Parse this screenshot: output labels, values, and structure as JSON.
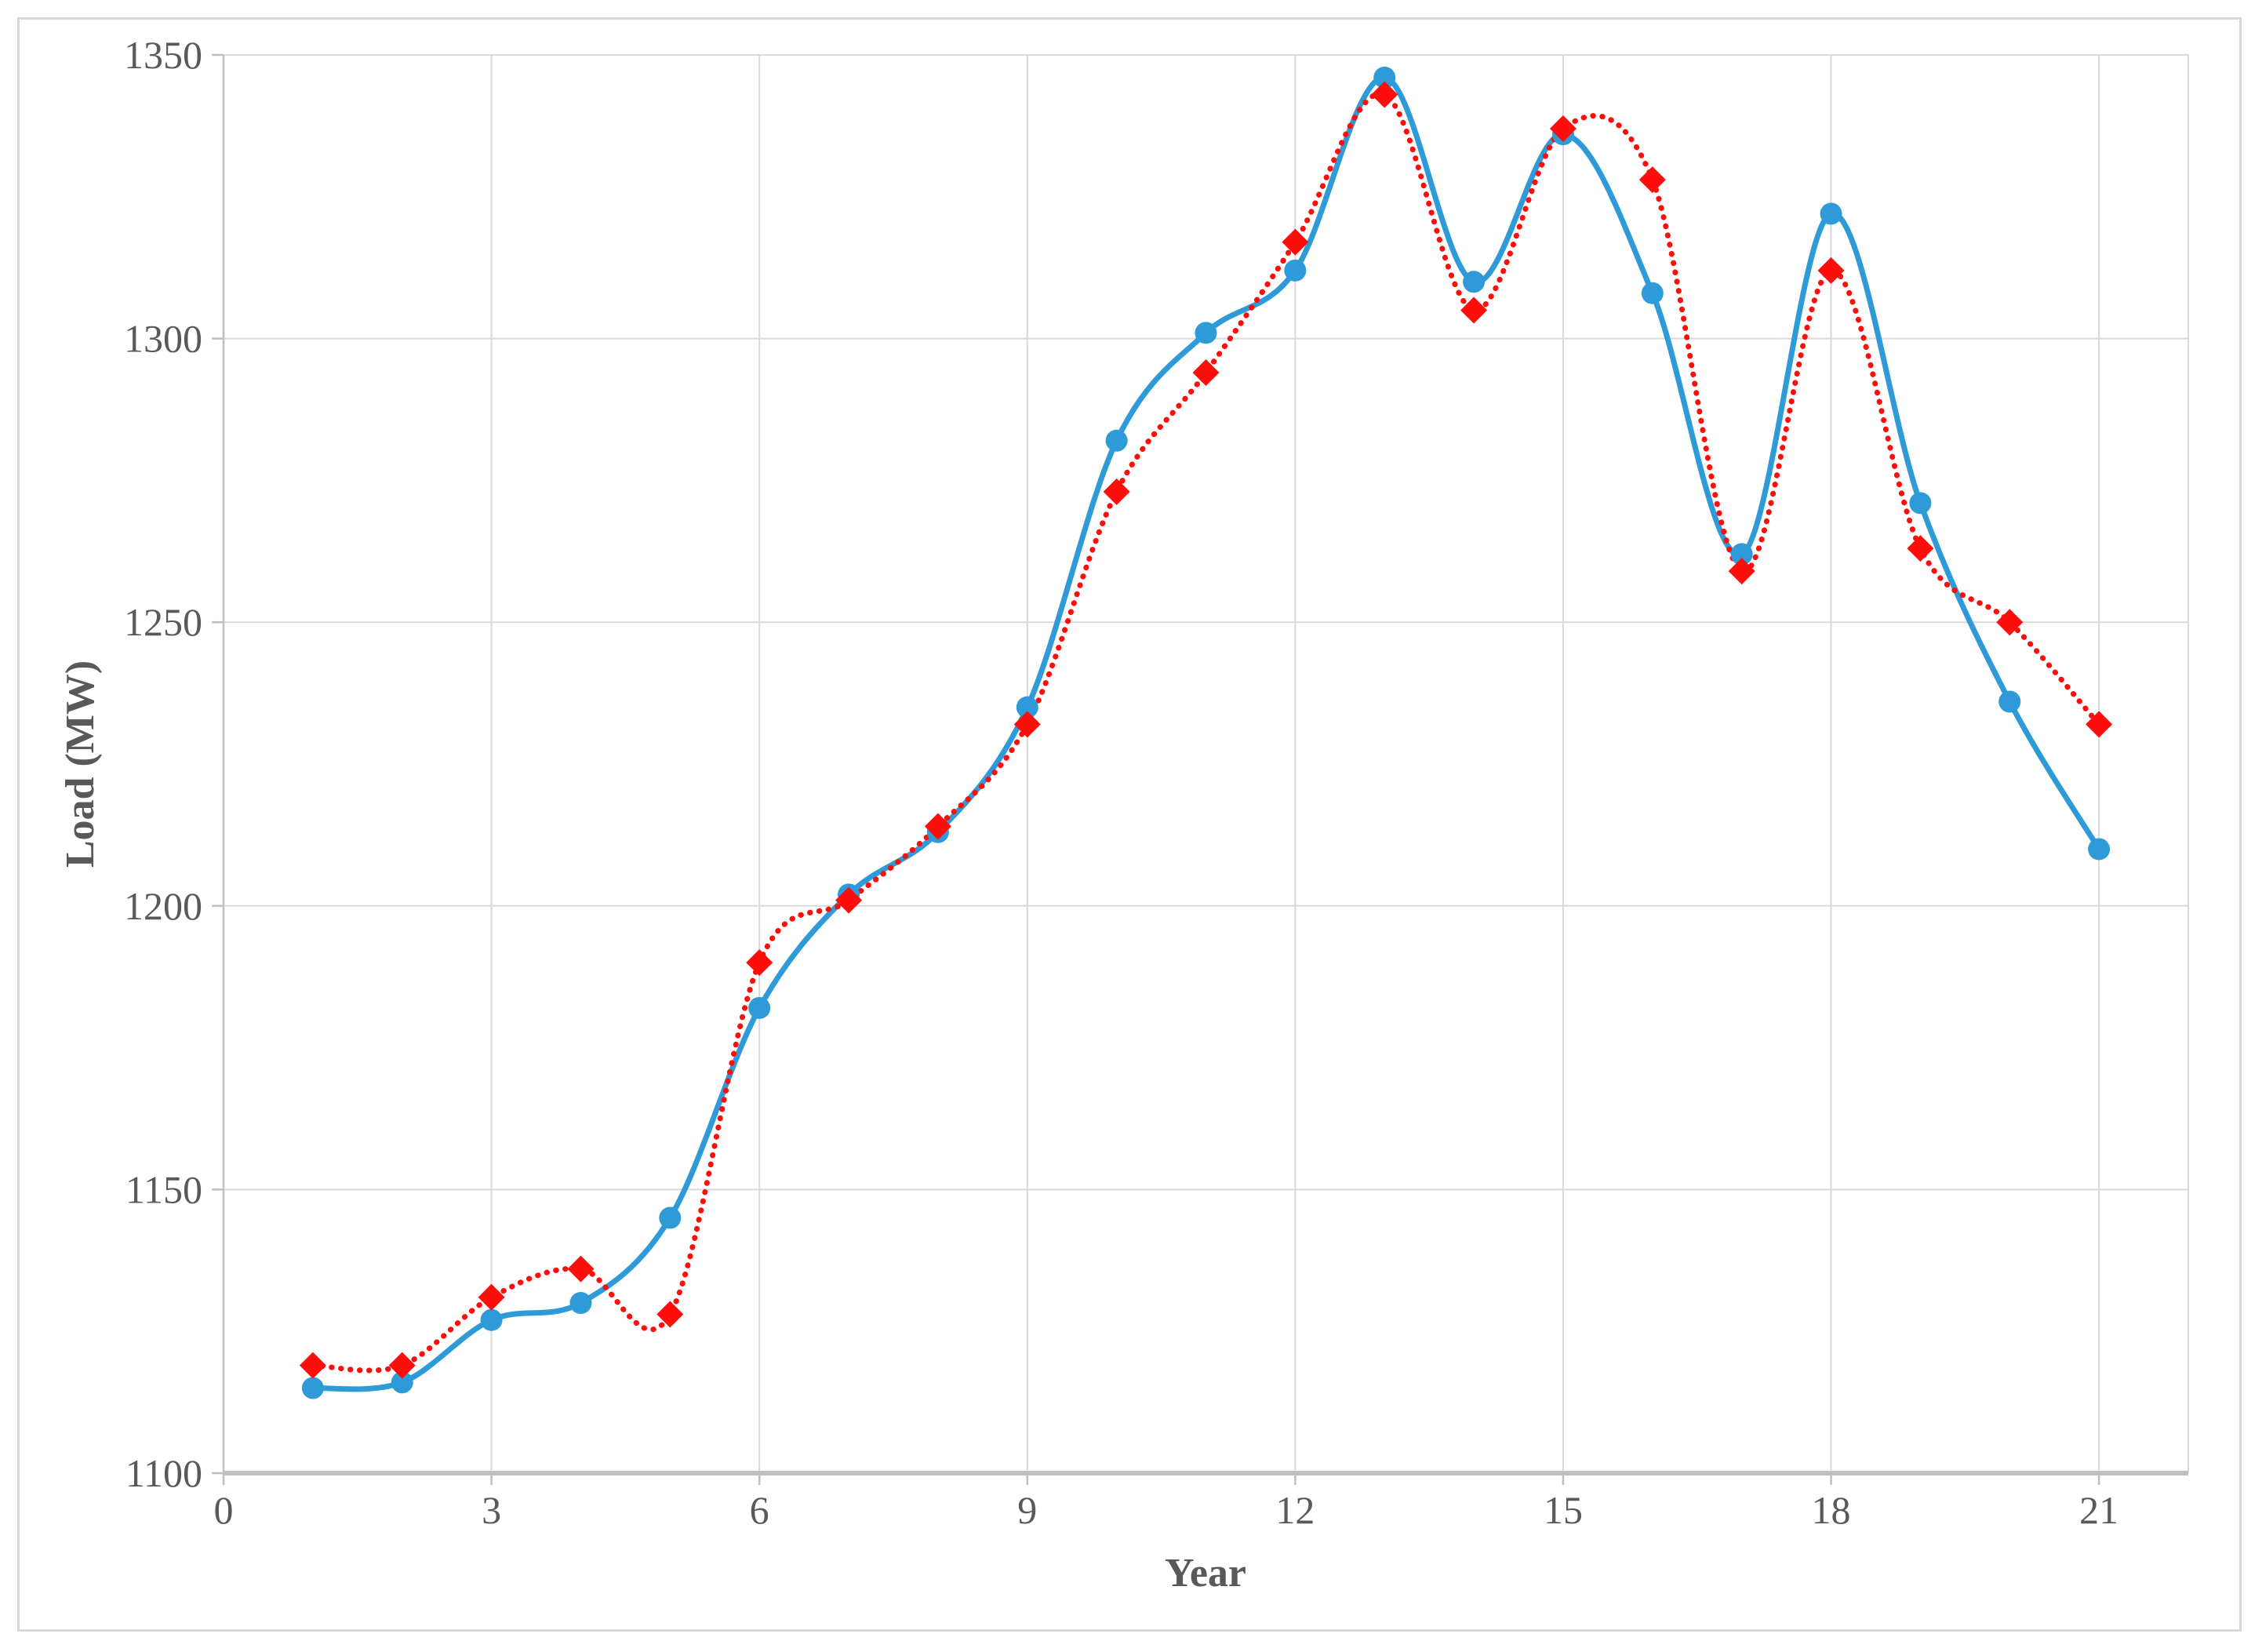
{
  "figure": {
    "background_color": "#FFFFFF",
    "frame_color": "#D8D8D8",
    "grid_color": "#D9D9D9",
    "axis_line_color": "#BFBFBF",
    "tick_label_color": "#595959",
    "axis_title_color": "#595959"
  },
  "chart_data": {
    "type": "line",
    "title": "",
    "xlabel": "Year",
    "ylabel": "Load (MW)",
    "xlim": [
      0,
      22
    ],
    "ylim": [
      1100,
      1350
    ],
    "x_ticks": [
      0,
      3,
      6,
      9,
      12,
      15,
      18,
      21
    ],
    "y_ticks": [
      1100,
      1150,
      1200,
      1250,
      1300,
      1350
    ],
    "grid": true,
    "legend": false,
    "x": [
      1,
      2,
      3,
      4,
      5,
      6,
      7,
      8,
      9,
      10,
      11,
      12,
      13,
      14,
      15,
      16,
      17,
      18,
      19,
      20,
      21
    ],
    "series": [
      {
        "name": "blue solid line with circle markers",
        "color": "#2E9AD7",
        "marker": "circle",
        "line_style": "solid",
        "smooth": true,
        "values": [
          1115,
          1116,
          1127,
          1130,
          1145,
          1182,
          1202,
          1213,
          1235,
          1282,
          1301,
          1312,
          1346,
          1310,
          1336,
          1308,
          1262,
          1322,
          1271,
          1236,
          1210
        ]
      },
      {
        "name": "red dotted line with diamond markers",
        "color": "#FF0D0B",
        "marker": "diamond",
        "line_style": "dotted",
        "smooth": true,
        "values": [
          1119,
          1119,
          1131,
          1136,
          1128,
          1190,
          1201,
          1214,
          1232,
          1273,
          1294,
          1317,
          1343,
          1305,
          1337,
          1328,
          1259,
          1312,
          1263,
          1250,
          1232
        ]
      }
    ]
  }
}
